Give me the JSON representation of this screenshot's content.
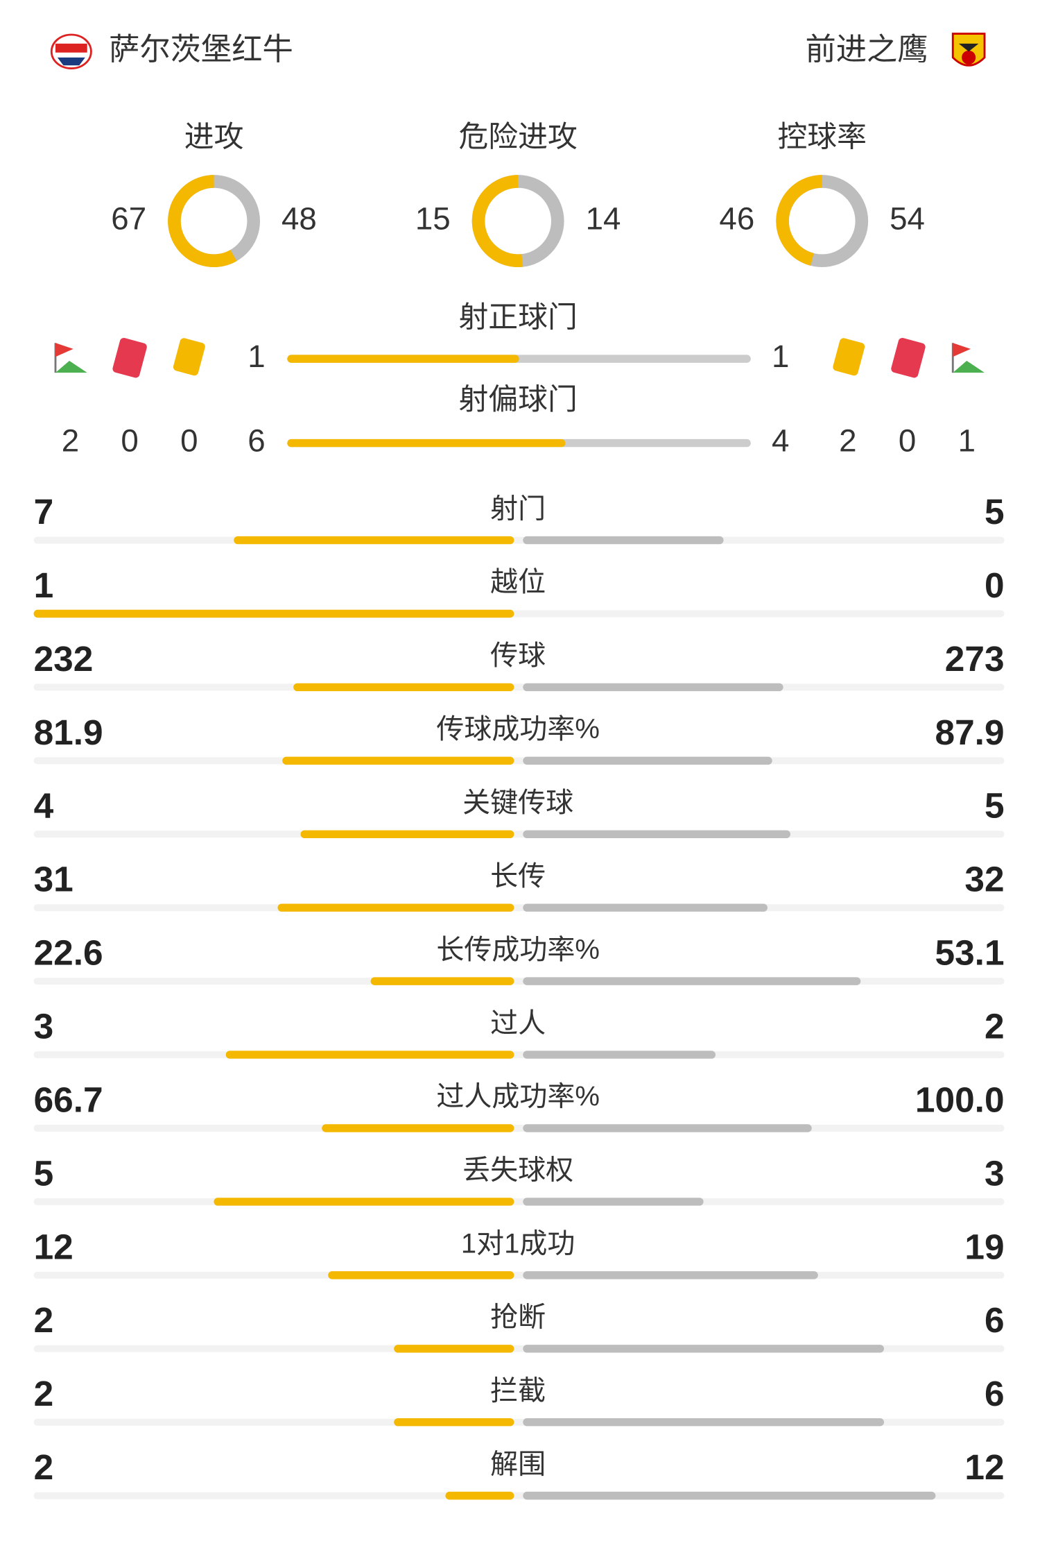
{
  "header": {
    "home": "萨尔茨堡红牛",
    "away": "前进之鹰"
  },
  "summary": [
    {
      "label": "进攻",
      "home": 67,
      "away": 48
    },
    {
      "label": "危险进攻",
      "home": 15,
      "away": 14
    },
    {
      "label": "控球率",
      "home": 46,
      "away": 54
    }
  ],
  "shots_on_target": {
    "label": "射正球门",
    "home": 1,
    "away": 1
  },
  "shots_off_target": {
    "label": "射偏球门",
    "home": 6,
    "away": 4
  },
  "cards": {
    "home": {
      "corners": 2,
      "red": 0,
      "yellow": 0
    },
    "away": {
      "yellow": 2,
      "red": 0,
      "corners": 1
    }
  },
  "stats": [
    {
      "label": "射门",
      "home": "7",
      "away": "5"
    },
    {
      "label": "越位",
      "home": "1",
      "away": "0"
    },
    {
      "label": "传球",
      "home": "232",
      "away": "273"
    },
    {
      "label": "传球成功率%",
      "home": "81.9",
      "away": "87.9"
    },
    {
      "label": "关键传球",
      "home": "4",
      "away": "5"
    },
    {
      "label": "长传",
      "home": "31",
      "away": "32"
    },
    {
      "label": "长传成功率%",
      "home": "22.6",
      "away": "53.1"
    },
    {
      "label": "过人",
      "home": "3",
      "away": "2"
    },
    {
      "label": "过人成功率%",
      "home": "66.7",
      "away": "100.0"
    },
    {
      "label": "丢失球权",
      "home": "5",
      "away": "3"
    },
    {
      "label": "1对1成功",
      "home": "12",
      "away": "19"
    },
    {
      "label": "抢断",
      "home": "2",
      "away": "6"
    },
    {
      "label": "拦截",
      "home": "2",
      "away": "6"
    },
    {
      "label": "解围",
      "home": "2",
      "away": "12"
    }
  ]
}
